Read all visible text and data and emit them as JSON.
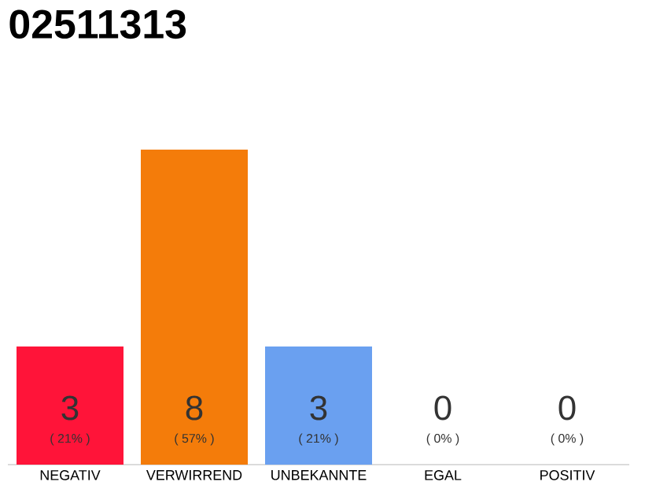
{
  "chart_data": {
    "type": "bar",
    "title": "02511313",
    "categories": [
      "NEGATIV",
      "VERWIRREND",
      "UNBEKANNTE",
      "EGAL",
      "POSITIV"
    ],
    "values": [
      3,
      8,
      3,
      0,
      0
    ],
    "colors": [
      "#ff1439",
      "#f47c0a",
      "#6aa0f0",
      "#bbbbbb",
      "#bbbbbb"
    ],
    "value_labels": [
      "3",
      "8",
      "3",
      "0",
      "0"
    ],
    "annotations": [
      {
        "text": "( 21% )",
        "x": "NEGATIV",
        "y": 0
      },
      {
        "text": "( 57% )",
        "x": "VERWIRREND",
        "y": 0
      },
      {
        "text": "( 21% )",
        "x": "UNBEKANNTE",
        "y": 0
      },
      {
        "text": "( 0% )",
        "x": "EGAL",
        "y": 0
      },
      {
        "text": "( 0% )",
        "x": "POSITIV",
        "y": 0
      }
    ]
  }
}
